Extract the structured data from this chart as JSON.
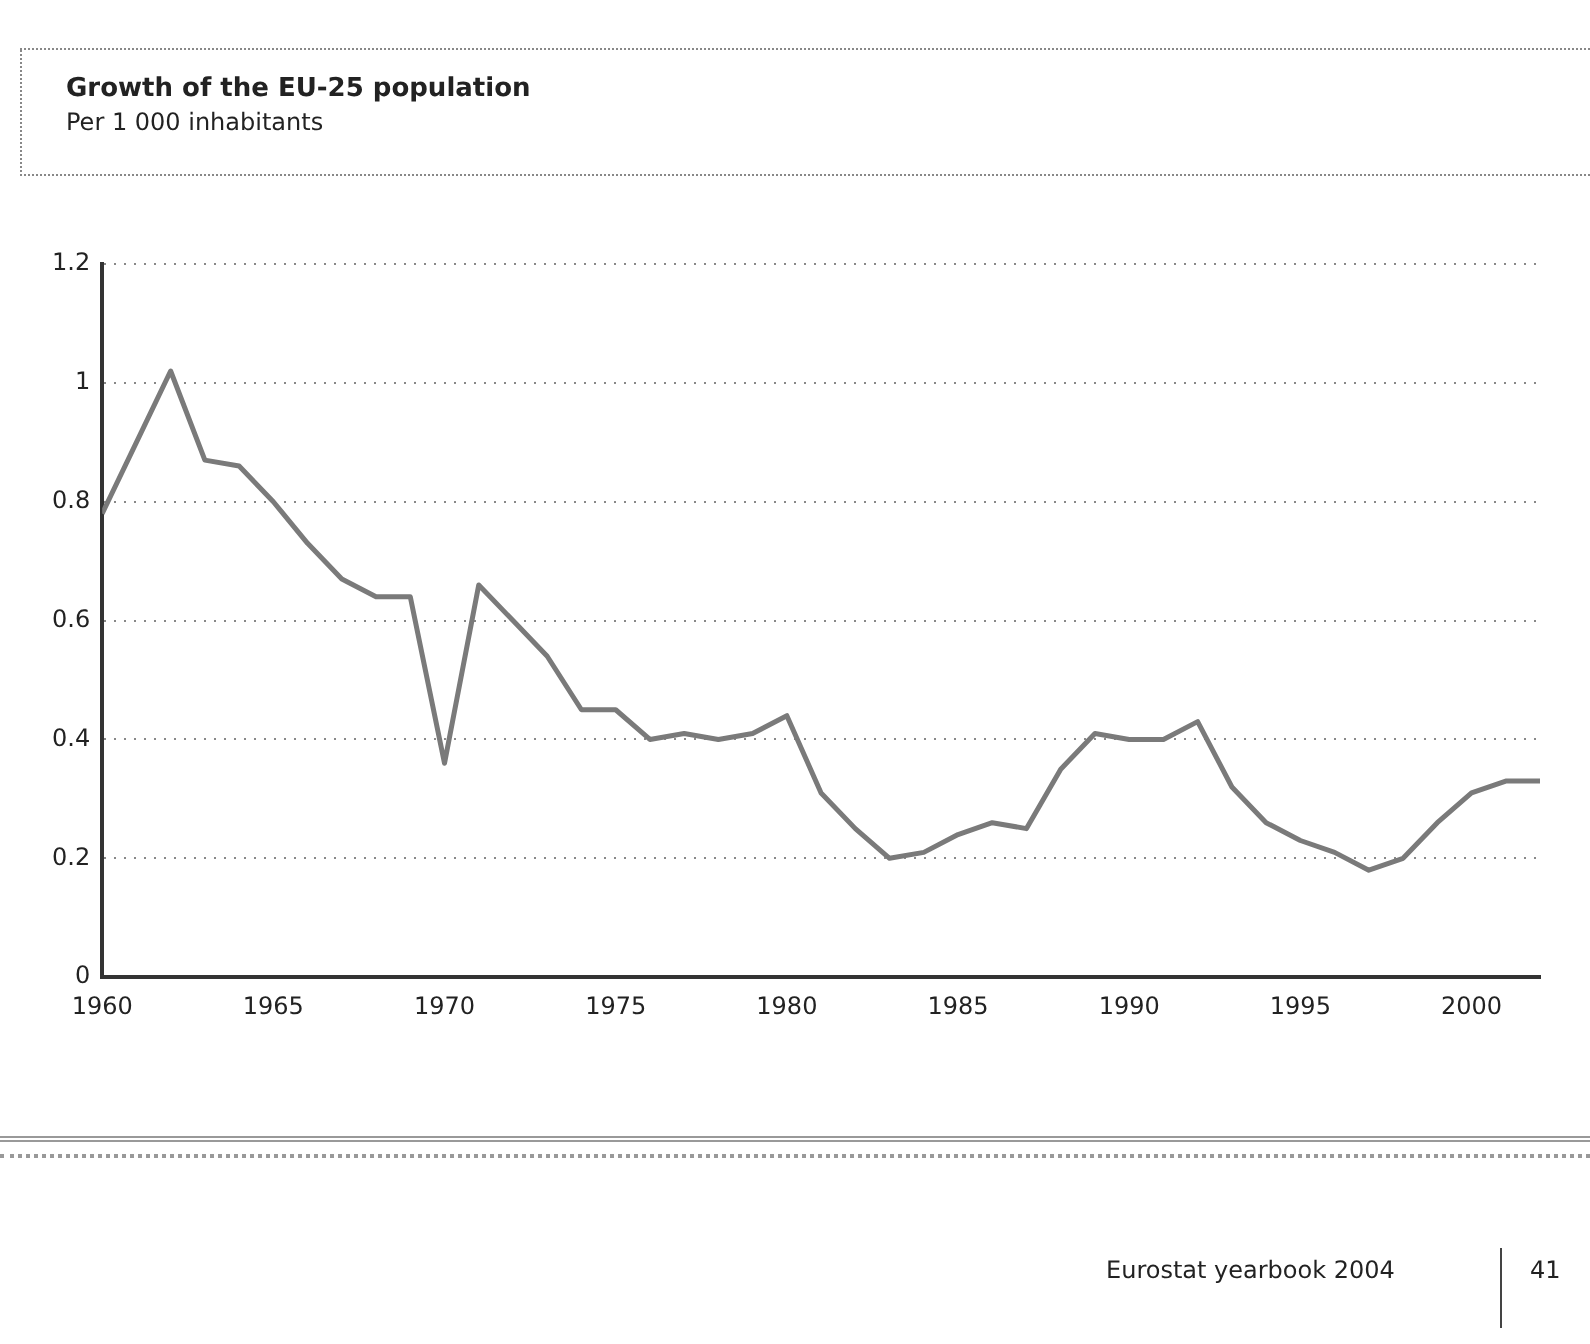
{
  "chart_data": {
    "type": "line",
    "title": "Growth of the EU-25 population",
    "subtitle": "Per 1 000 inhabitants",
    "x": [
      1960,
      1961,
      1962,
      1963,
      1964,
      1965,
      1966,
      1967,
      1968,
      1969,
      1970,
      1971,
      1972,
      1973,
      1974,
      1975,
      1976,
      1977,
      1978,
      1979,
      1980,
      1981,
      1982,
      1983,
      1984,
      1985,
      1986,
      1987,
      1988,
      1989,
      1990,
      1991,
      1992,
      1993,
      1994,
      1995,
      1996,
      1997,
      1998,
      1999,
      2000,
      2001,
      2002
    ],
    "series": [
      {
        "color": "#7a7a7a",
        "values": [
          0.78,
          0.9,
          1.02,
          0.87,
          0.86,
          0.8,
          0.73,
          0.67,
          0.64,
          0.64,
          0.36,
          0.66,
          0.6,
          0.54,
          0.45,
          0.45,
          0.4,
          0.41,
          0.4,
          0.41,
          0.44,
          0.31,
          0.25,
          0.2,
          0.21,
          0.24,
          0.26,
          0.25,
          0.35,
          0.41,
          0.4,
          0.4,
          0.43,
          0.32,
          0.26,
          0.23,
          0.21,
          0.18,
          0.2,
          0.26,
          0.31,
          0.33,
          0.33
        ]
      }
    ],
    "xlim": [
      1960,
      2002
    ],
    "xticks": [
      1960,
      1965,
      1970,
      1975,
      1980,
      1985,
      1990,
      1995,
      2000
    ],
    "ylim": [
      0,
      1.2
    ],
    "yticks": [
      0,
      0.2,
      0.4,
      0.6,
      0.8,
      1,
      1.2
    ],
    "grid": "y",
    "legend": false,
    "marker": "none",
    "line_style": "solid",
    "annotations": [
      "Eurostat yearbook 2004",
      "41"
    ]
  }
}
